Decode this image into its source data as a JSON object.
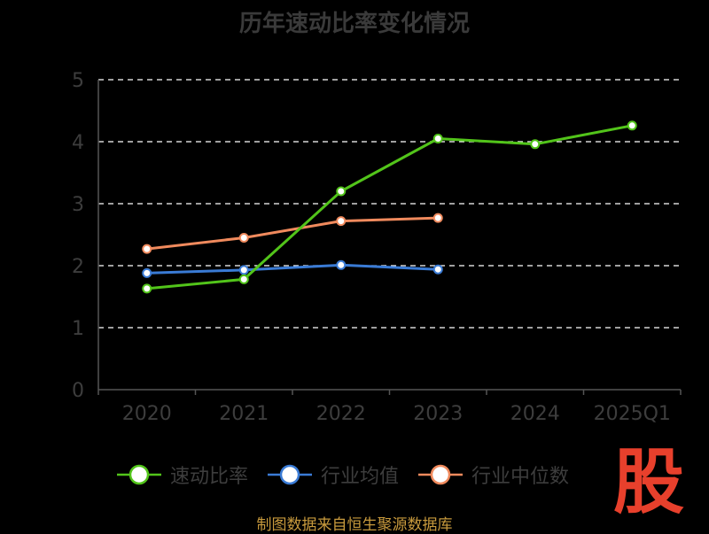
{
  "title": "历年速动比率变化情况",
  "source": "制图数据来自恒生聚源数据库",
  "watermark": "股",
  "colors": {
    "grid": "#ffffff",
    "axis": "#555555",
    "tick_text": "#3d3d3d"
  },
  "chart_data": {
    "type": "line",
    "title": "历年速动比率变化情况",
    "categories": [
      "2020",
      "2021",
      "2022",
      "2023",
      "2024",
      "2025Q1"
    ],
    "ylim": [
      0,
      5
    ],
    "yticks": [
      0,
      1,
      2,
      3,
      4,
      5
    ],
    "grid": true,
    "legend_position": "bottom",
    "series": [
      {
        "name": "速动比率",
        "color": "#52c41a",
        "values": [
          1.63,
          1.78,
          3.2,
          4.05,
          3.96,
          4.26
        ]
      },
      {
        "name": "行业均值",
        "color": "#3a7bd5",
        "values": [
          1.88,
          1.93,
          2.01,
          1.94,
          null,
          null
        ]
      },
      {
        "name": "行业中位数",
        "color": "#f08a5d",
        "values": [
          2.27,
          2.45,
          2.72,
          2.77,
          null,
          null
        ]
      }
    ]
  }
}
